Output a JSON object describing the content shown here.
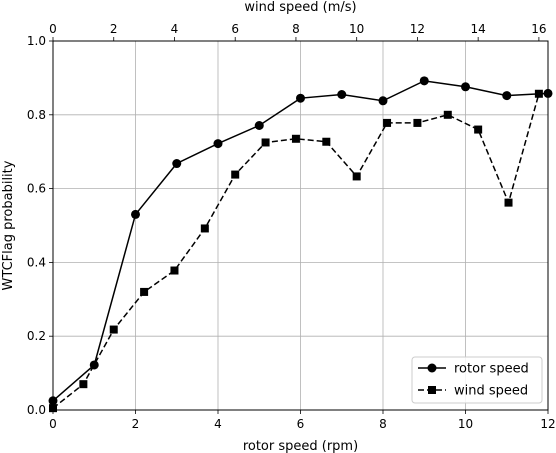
{
  "chart_data": {
    "type": "line",
    "title": "",
    "grid": true,
    "legend_position": "lower-right",
    "xlabel": "rotor speed (rpm)",
    "x2label": "wind speed (m/s)",
    "ylabel": "WTCFlag probability",
    "xlim": [
      0,
      12
    ],
    "x2lim": [
      0,
      16.3
    ],
    "ylim": [
      0,
      1.0
    ],
    "xticks": [
      0,
      2,
      4,
      6,
      8,
      10,
      12
    ],
    "x2ticks": [
      0,
      2,
      4,
      6,
      8,
      10,
      12,
      14,
      16
    ],
    "yticks": [
      0.0,
      0.2,
      0.4,
      0.6,
      0.8,
      1.0
    ],
    "series": [
      {
        "name": "rotor speed",
        "axis": "bottom",
        "marker": "circle",
        "linestyle": "solid",
        "color": "#000000",
        "x": [
          0,
          1,
          2,
          3,
          4,
          5,
          6,
          7,
          8,
          9,
          10,
          11,
          12
        ],
        "y": [
          0.025,
          0.122,
          0.53,
          0.668,
          0.722,
          0.771,
          0.845,
          0.855,
          0.838,
          0.892,
          0.876,
          0.852,
          0.858
        ]
      },
      {
        "name": "wind speed",
        "axis": "top",
        "marker": "square",
        "linestyle": "dashed",
        "color": "#000000",
        "x": [
          0,
          1,
          2,
          3,
          4,
          5,
          6,
          7,
          8,
          9,
          10,
          11,
          12,
          13,
          14,
          15,
          16
        ],
        "y": [
          0.005,
          0.07,
          0.218,
          0.32,
          0.378,
          0.492,
          0.638,
          0.725,
          0.735,
          0.727,
          0.633,
          0.778,
          0.778,
          0.8,
          0.76,
          0.562,
          0.857
        ]
      }
    ]
  }
}
